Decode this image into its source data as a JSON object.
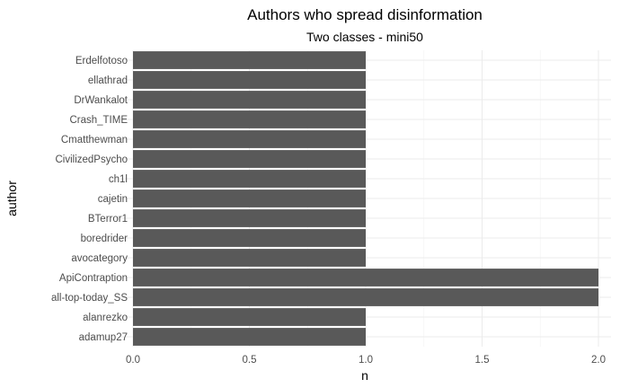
{
  "chart_data": {
    "type": "bar",
    "orientation": "horizontal",
    "title": "Authors who spread disinformation",
    "subtitle": "Two classes - mini50",
    "xlabel": "n",
    "ylabel": "author",
    "categories": [
      "Erdelfotoso",
      "ellathrad",
      "DrWankalot",
      "Crash_TIME",
      "Cmatthewman",
      "CivilizedPsycho",
      "ch1l",
      "cajetin",
      "BTerror1",
      "boredrider",
      "avocategory",
      "ApiContraption",
      "all-top-today_SS",
      "alanrezko",
      "adamup27"
    ],
    "values": [
      1,
      1,
      1,
      1,
      1,
      1,
      1,
      1,
      1,
      1,
      1,
      2,
      2,
      1,
      1
    ],
    "xlim": [
      0,
      2.05
    ],
    "xticks": [
      "0.0",
      "0.5",
      "1.0",
      "1.5",
      "2.0"
    ],
    "grid": true,
    "bar_color": "#595959"
  }
}
